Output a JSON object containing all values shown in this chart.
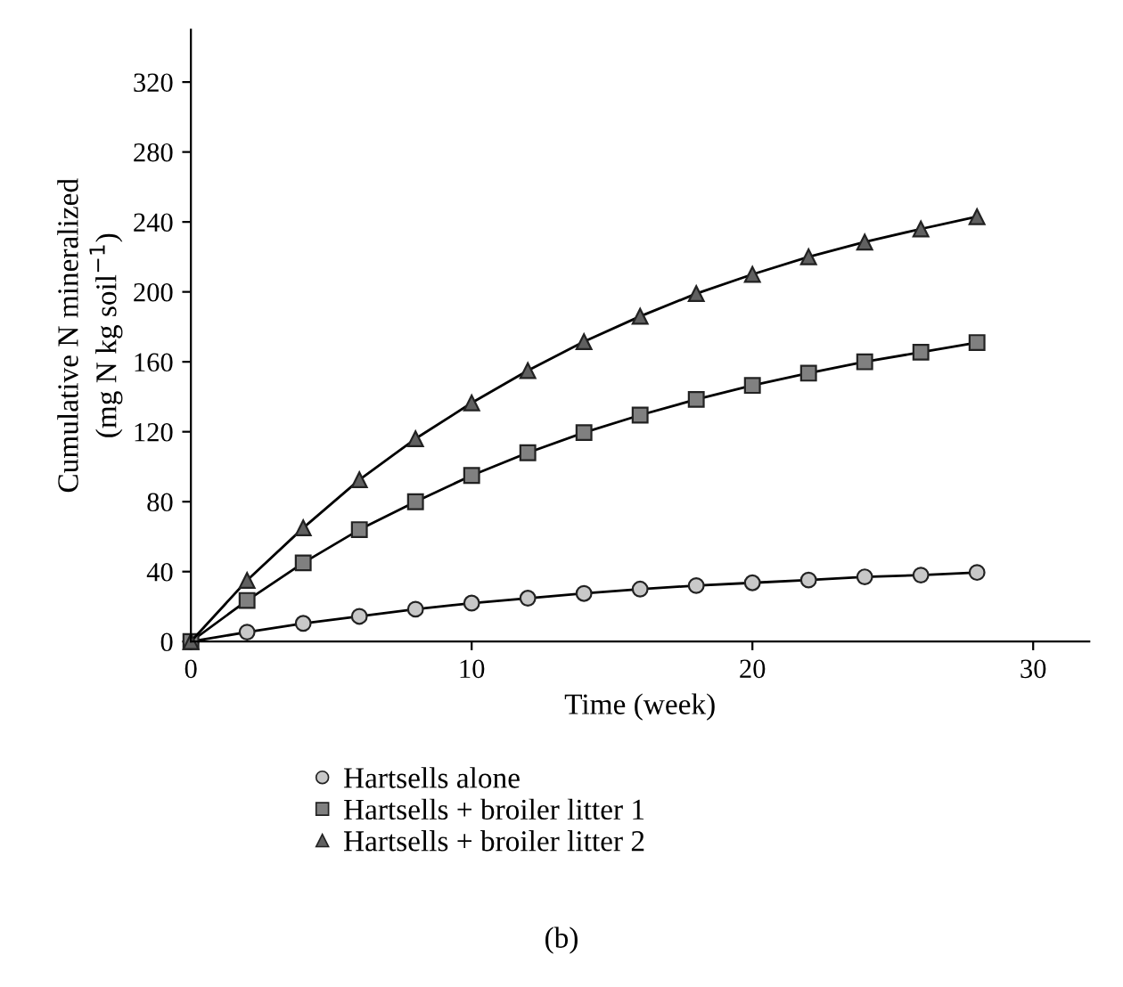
{
  "chart_data": {
    "type": "line",
    "xlabel": "Time (week)",
    "ylabel": "Cumulative N mineralized\n(mg N kg soil$^{−1}$)",
    "x": [
      0,
      2,
      4,
      6,
      8,
      10,
      12,
      14,
      16,
      18,
      20,
      22,
      24,
      26,
      28
    ],
    "series": [
      {
        "name": "Hartsells alone",
        "color": "#c8c8c8",
        "marker": "circle",
        "values": [
          0,
          5.4,
          10.4,
          14.4,
          18.5,
          22,
          24.8,
          27.5,
          30,
          32,
          33.6,
          35.2,
          37,
          38,
          39.5
        ]
      },
      {
        "name": "Hartsells + broiler litter 1",
        "color": "#808080",
        "marker": "square",
        "values": [
          0,
          23.5,
          45,
          64,
          80,
          95,
          108,
          119.5,
          129.5,
          138.5,
          146.5,
          153.5,
          160,
          165.5,
          171
        ]
      },
      {
        "name": "Hartsells + broiler litter 2",
        "color": "#606060",
        "marker": "triangle",
        "values": [
          0,
          35,
          65,
          92.5,
          116,
          136.5,
          155,
          171.5,
          186,
          199,
          210,
          220,
          228.5,
          236,
          243
        ]
      }
    ],
    "xlim": [
      0,
      32
    ],
    "xticks": [
      0,
      10,
      20,
      30
    ],
    "ylim": [
      0,
      350
    ],
    "yticks": [
      0,
      40,
      80,
      120,
      160,
      200,
      240,
      280,
      320
    ],
    "grid": false,
    "legend": "bottom",
    "line_style": "solid",
    "annotations": [
      "(b)"
    ]
  }
}
